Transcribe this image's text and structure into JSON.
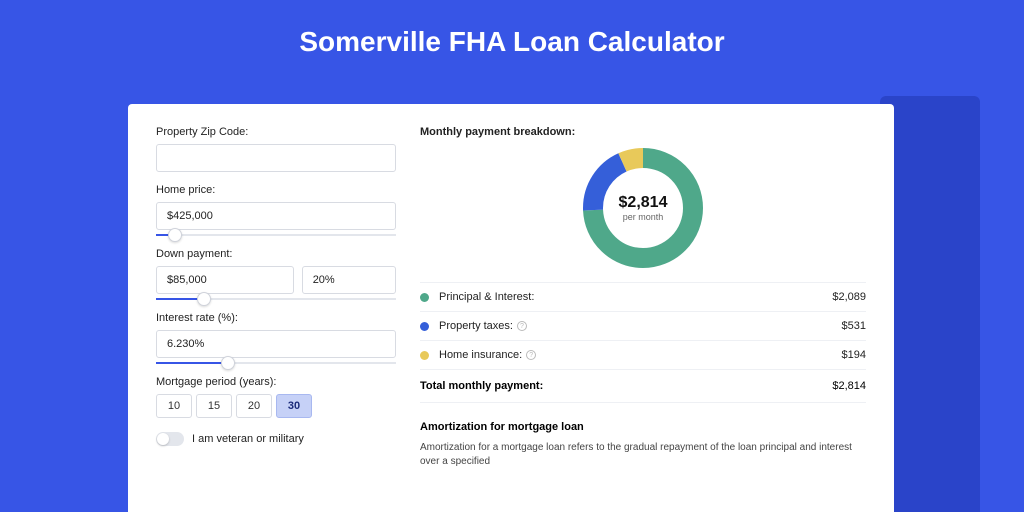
{
  "page": {
    "title": "Somerville FHA Loan Calculator",
    "bg_color": "#3755e6",
    "shadow_color": "#2a44c9",
    "card_bg": "#ffffff"
  },
  "form": {
    "zip": {
      "label": "Property Zip Code:",
      "value": ""
    },
    "price": {
      "label": "Home price:",
      "value": "$425,000",
      "slider_pct": 8
    },
    "down": {
      "label": "Down payment:",
      "amount": "$85,000",
      "pct": "20%",
      "slider_pct": 20
    },
    "rate": {
      "label": "Interest rate (%):",
      "value": "6.230%",
      "slider_pct": 30
    },
    "period": {
      "label": "Mortgage period (years):",
      "options": [
        "10",
        "15",
        "20",
        "30"
      ],
      "selected": "30"
    },
    "veteran": {
      "label": "I am veteran or military",
      "checked": false
    }
  },
  "breakdown": {
    "title": "Monthly payment breakdown:",
    "donut": {
      "amount": "$2,814",
      "sub": "per month",
      "segments": [
        {
          "key": "pi",
          "pct": 74.2,
          "color": "#4fa88a"
        },
        {
          "key": "tax",
          "pct": 18.9,
          "color": "#355fd9"
        },
        {
          "key": "ins",
          "pct": 6.9,
          "color": "#e8c95a"
        }
      ],
      "size": 120,
      "thickness": 20,
      "bg": "#ffffff"
    },
    "items": [
      {
        "label": "Principal & Interest:",
        "value": "$2,089",
        "color": "#4fa88a",
        "info": false
      },
      {
        "label": "Property taxes:",
        "value": "$531",
        "color": "#355fd9",
        "info": true
      },
      {
        "label": "Home insurance:",
        "value": "$194",
        "color": "#e8c95a",
        "info": true
      }
    ],
    "total": {
      "label": "Total monthly payment:",
      "value": "$2,814"
    }
  },
  "amortization": {
    "title": "Amortization for mortgage loan",
    "body": "Amortization for a mortgage loan refers to the gradual repayment of the loan principal and interest over a specified"
  }
}
